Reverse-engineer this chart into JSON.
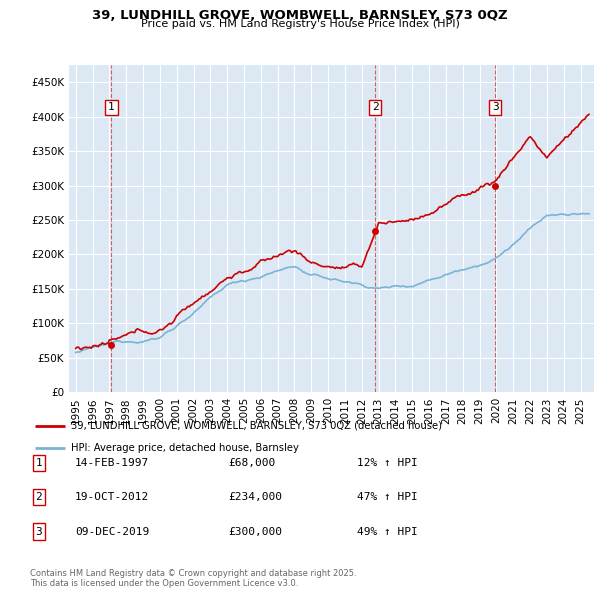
{
  "title": "39, LUNDHILL GROVE, WOMBWELL, BARNSLEY, S73 0QZ",
  "subtitle": "Price paid vs. HM Land Registry's House Price Index (HPI)",
  "legend_line1": "39, LUNDHILL GROVE, WOMBWELL, BARNSLEY, S73 0QZ (detached house)",
  "legend_line2": "HPI: Average price, detached house, Barnsley",
  "footer": "Contains HM Land Registry data © Crown copyright and database right 2025.\nThis data is licensed under the Open Government Licence v3.0.",
  "transactions": [
    {
      "num": 1,
      "date": "14-FEB-1997",
      "price": 68000,
      "pct": "12%",
      "dir": "↑",
      "year": 1997.12
    },
    {
      "num": 2,
      "date": "19-OCT-2012",
      "price": 234000,
      "pct": "47%",
      "dir": "↑",
      "year": 2012.8
    },
    {
      "num": 3,
      "date": "09-DEC-2019",
      "price": 300000,
      "pct": "49%",
      "dir": "↑",
      "year": 2019.93
    }
  ],
  "hpi_color": "#7ab3d4",
  "price_color": "#cc0000",
  "dashed_color": "#cc0000",
  "bg_color": "#dce9f5",
  "grid_color": "#ffffff",
  "ylim": [
    0,
    475000
  ],
  "xlim_start": 1994.6,
  "xlim_end": 2025.8,
  "yticks": [
    0,
    50000,
    100000,
    150000,
    200000,
    250000,
    300000,
    350000,
    400000,
    450000
  ],
  "xticks": [
    1995,
    1996,
    1997,
    1998,
    1999,
    2000,
    2001,
    2002,
    2003,
    2004,
    2005,
    2006,
    2007,
    2008,
    2009,
    2010,
    2011,
    2012,
    2013,
    2014,
    2015,
    2016,
    2017,
    2018,
    2019,
    2020,
    2021,
    2022,
    2023,
    2024,
    2025
  ]
}
